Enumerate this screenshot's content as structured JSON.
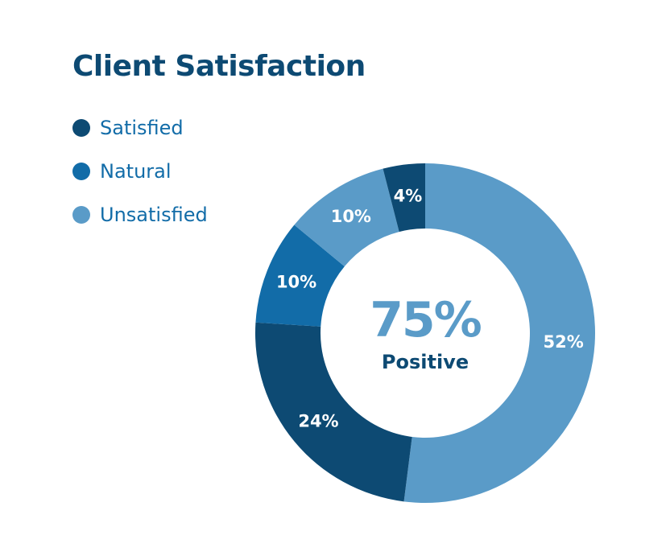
{
  "chart_data": {
    "type": "pie",
    "variant": "donut",
    "title": "Client Satisfaction",
    "legend": [
      {
        "name": "Satisfied",
        "color": "#0d4a73"
      },
      {
        "name": "Natural",
        "color": "#126ca8"
      },
      {
        "name": "Unsatisfied",
        "color": "#5a9bc8"
      }
    ],
    "slices": [
      {
        "value": 52,
        "label": "52%",
        "category": "Unsatisfied",
        "color": "#5a9bc8"
      },
      {
        "value": 24,
        "label": "24%",
        "category": "Satisfied",
        "color": "#0d4a73"
      },
      {
        "value": 10,
        "label": "10%",
        "category": "Natural",
        "color": "#126ca8"
      },
      {
        "value": 10,
        "label": "10%",
        "category": "Unsatisfied",
        "color": "#5a9bc8"
      },
      {
        "value": 4,
        "label": "4%",
        "category": "Satisfied",
        "color": "#0d4a73"
      }
    ],
    "center": {
      "value": "75%",
      "caption": "Positive"
    }
  },
  "colors": {
    "title": "#0d4a73",
    "legend_text": "#126ca8",
    "center_value": "#5a9bc8",
    "center_caption": "#0d4a73"
  }
}
